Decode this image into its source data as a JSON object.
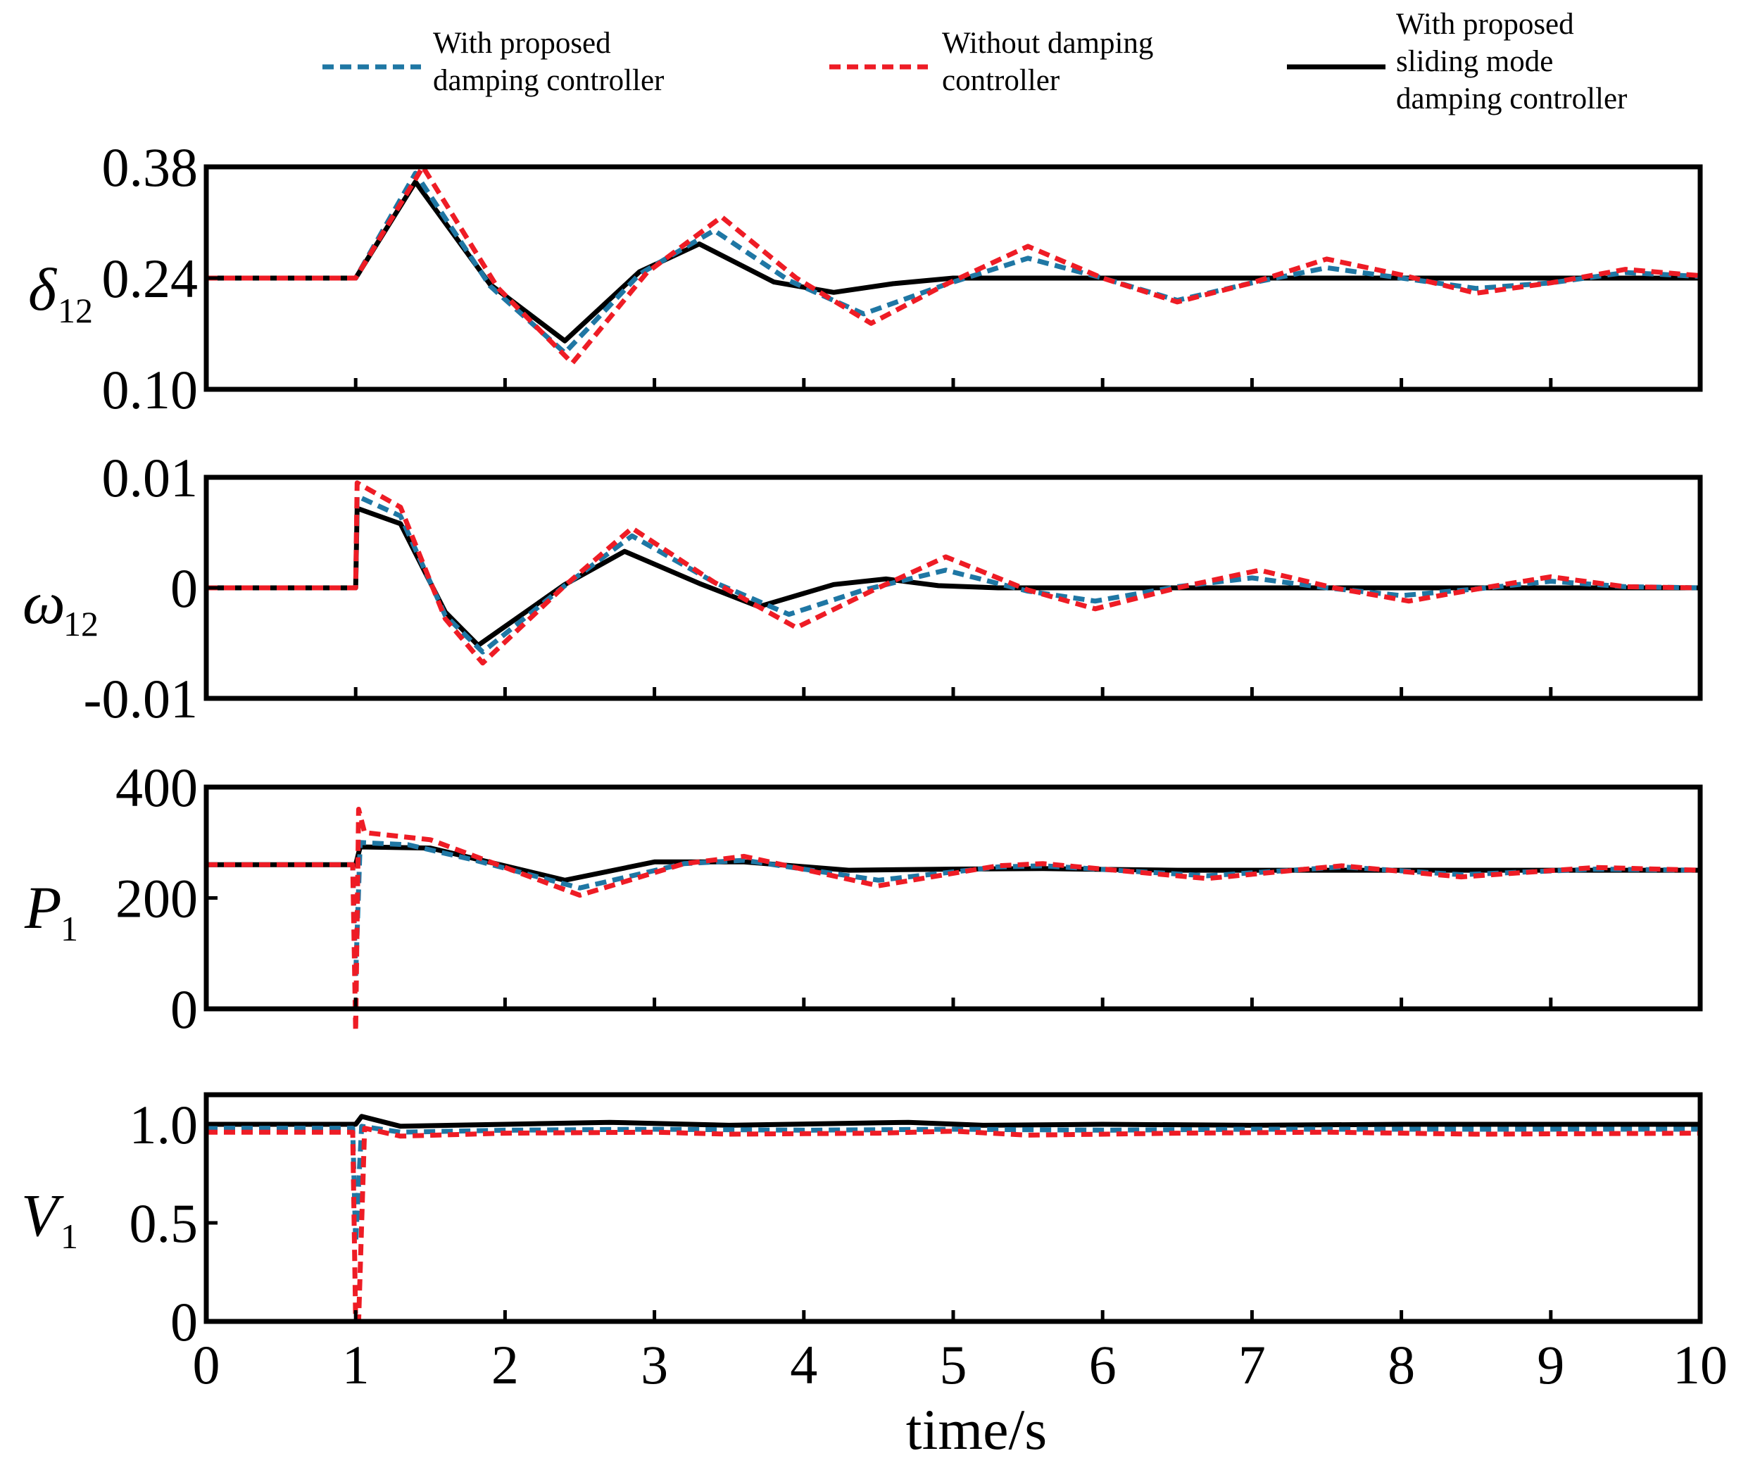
{
  "colors": {
    "blue": "#1f77a4",
    "red": "#ee1c25",
    "black": "#000000"
  },
  "legend": [
    {
      "lines": [
        "With proposed",
        "damping controller"
      ],
      "style": "dash",
      "color": "#1f77a4"
    },
    {
      "lines": [
        "Without damping",
        "controller"
      ],
      "style": "dash",
      "color": "#ee1c25"
    },
    {
      "lines": [
        "With proposed",
        "sliding mode",
        "damping controller"
      ],
      "style": "solid",
      "color": "#000000"
    }
  ],
  "chart_data": [
    {
      "type": "line",
      "id": "delta",
      "ylabel": "δ",
      "ylabel_sub": "12",
      "ylim": [
        0.1,
        0.38
      ],
      "yticks": [
        0.1,
        0.24,
        0.38
      ],
      "yticklabels": [
        "0.10",
        "0.24",
        "0.38"
      ],
      "xlim": [
        0,
        10
      ],
      "series": [
        {
          "name": "With proposed damping controller",
          "points": [
            [
              0,
              0.24
            ],
            [
              1,
              0.24
            ],
            [
              1.4,
              0.372
            ],
            [
              1.9,
              0.23
            ],
            [
              2.4,
              0.146
            ],
            [
              2.9,
              0.245
            ],
            [
              3.4,
              0.3
            ],
            [
              3.9,
              0.237
            ],
            [
              4.4,
              0.195
            ],
            [
              4.95,
              0.232
            ],
            [
              5.5,
              0.265
            ],
            [
              6,
              0.24
            ],
            [
              6.5,
              0.212
            ],
            [
              7,
              0.234
            ],
            [
              7.5,
              0.253
            ],
            [
              8,
              0.24
            ],
            [
              8.5,
              0.227
            ],
            [
              9,
              0.234
            ],
            [
              9.5,
              0.247
            ],
            [
              10,
              0.242
            ]
          ]
        },
        {
          "name": "Without damping controller",
          "points": [
            [
              0,
              0.24
            ],
            [
              1,
              0.24
            ],
            [
              1.45,
              0.38
            ],
            [
              1.95,
              0.228
            ],
            [
              2.45,
              0.133
            ],
            [
              2.95,
              0.247
            ],
            [
              3.45,
              0.317
            ],
            [
              3.95,
              0.24
            ],
            [
              4.45,
              0.183
            ],
            [
              4.95,
              0.232
            ],
            [
              5.5,
              0.28
            ],
            [
              6,
              0.24
            ],
            [
              6.5,
              0.21
            ],
            [
              7,
              0.234
            ],
            [
              7.5,
              0.264
            ],
            [
              8,
              0.244
            ],
            [
              8.5,
              0.221
            ],
            [
              9,
              0.234
            ],
            [
              9.5,
              0.251
            ],
            [
              10,
              0.243
            ]
          ]
        },
        {
          "name": "With proposed sliding mode damping controller",
          "points": [
            [
              0,
              0.24
            ],
            [
              1,
              0.24
            ],
            [
              1.4,
              0.361
            ],
            [
              1.9,
              0.232
            ],
            [
              2.4,
              0.161
            ],
            [
              2.9,
              0.248
            ],
            [
              3.3,
              0.283
            ],
            [
              3.8,
              0.235
            ],
            [
              4.2,
              0.222
            ],
            [
              4.6,
              0.233
            ],
            [
              5.0,
              0.24
            ],
            [
              10,
              0.24
            ]
          ]
        }
      ]
    },
    {
      "type": "line",
      "id": "omega",
      "ylabel": "ω",
      "ylabel_sub": "12",
      "ylim": [
        -0.01,
        0.01
      ],
      "yticks": [
        -0.01,
        0,
        0.01
      ],
      "yticklabels": [
        "-0.01",
        "0",
        "0.01"
      ],
      "xlim": [
        0,
        10
      ],
      "series": [
        {
          "name": "With proposed damping controller",
          "points": [
            [
              0,
              0
            ],
            [
              1,
              0
            ],
            [
              1.01,
              0.0083
            ],
            [
              1.3,
              0.0065
            ],
            [
              1.6,
              -0.0025
            ],
            [
              1.85,
              -0.0058
            ],
            [
              2.4,
              0.0002
            ],
            [
              2.85,
              0.0047
            ],
            [
              3.4,
              0.0005
            ],
            [
              3.9,
              -0.0024
            ],
            [
              4.4,
              -0.0002
            ],
            [
              4.95,
              0.0016
            ],
            [
              5.5,
              -0.0003
            ],
            [
              5.95,
              -0.0012
            ],
            [
              6.5,
              0.0001
            ],
            [
              7.0,
              0.0009
            ],
            [
              7.5,
              0
            ],
            [
              8.0,
              -0.0007
            ],
            [
              8.5,
              -0.0001
            ],
            [
              9.0,
              0.0006
            ],
            [
              9.5,
              0.0001
            ],
            [
              10,
              0
            ]
          ]
        },
        {
          "name": "Without damping controller",
          "points": [
            [
              0,
              0
            ],
            [
              1,
              0
            ],
            [
              1.01,
              0.0095
            ],
            [
              1.3,
              0.0073
            ],
            [
              1.6,
              -0.0028
            ],
            [
              1.85,
              -0.0068
            ],
            [
              2.4,
              0.0002
            ],
            [
              2.85,
              0.0054
            ],
            [
              3.4,
              0.0005
            ],
            [
              3.95,
              -0.0036
            ],
            [
              4.45,
              -0.0003
            ],
            [
              4.95,
              0.0028
            ],
            [
              5.5,
              -0.0002
            ],
            [
              5.95,
              -0.0019
            ],
            [
              6.5,
              0
            ],
            [
              7.05,
              0.0016
            ],
            [
              7.55,
              0
            ],
            [
              8.05,
              -0.0012
            ],
            [
              8.55,
              0
            ],
            [
              9.0,
              0.001
            ],
            [
              9.5,
              0.0001
            ],
            [
              10,
              0
            ]
          ]
        },
        {
          "name": "With proposed sliding mode damping controller",
          "points": [
            [
              0,
              0
            ],
            [
              1,
              0
            ],
            [
              1.01,
              0.0072
            ],
            [
              1.3,
              0.0058
            ],
            [
              1.6,
              -0.0022
            ],
            [
              1.82,
              -0.0052
            ],
            [
              2.4,
              0.0003
            ],
            [
              2.8,
              0.0033
            ],
            [
              3.3,
              0.0004
            ],
            [
              3.7,
              -0.0017
            ],
            [
              4.2,
              0.0003
            ],
            [
              4.55,
              0.0008
            ],
            [
              4.9,
              0.0002
            ],
            [
              5.3,
              0
            ],
            [
              10,
              0
            ]
          ]
        }
      ]
    },
    {
      "type": "line",
      "id": "power",
      "ylabel": "P",
      "ylabel_sub": "1",
      "ylim": [
        0,
        400
      ],
      "yticks": [
        0,
        200,
        400
      ],
      "yticklabels": [
        "0",
        "200",
        "400"
      ],
      "xlim": [
        0,
        10
      ],
      "series": [
        {
          "name": "With proposed damping controller",
          "points": [
            [
              0,
              260
            ],
            [
              0.98,
              260
            ],
            [
              1.0,
              58
            ],
            [
              1.03,
              300
            ],
            [
              1.35,
              296
            ],
            [
              1.8,
              268
            ],
            [
              2.5,
              218
            ],
            [
              3.2,
              262
            ],
            [
              3.6,
              268
            ],
            [
              4.5,
              232
            ],
            [
              5.3,
              256
            ],
            [
              5.6,
              258
            ],
            [
              6.7,
              240
            ],
            [
              7.6,
              256
            ],
            [
              8.4,
              242
            ],
            [
              9.3,
              252
            ],
            [
              10,
              250
            ]
          ]
        },
        {
          "name": "Without damping controller",
          "points": [
            [
              0,
              260
            ],
            [
              0.98,
              260
            ],
            [
              1.0,
              -40
            ],
            [
              1.02,
              360
            ],
            [
              1.06,
              318
            ],
            [
              1.5,
              305
            ],
            [
              1.8,
              275
            ],
            [
              2.5,
              205
            ],
            [
              3.2,
              262
            ],
            [
              3.6,
              275
            ],
            [
              4.5,
              222
            ],
            [
              5.3,
              258
            ],
            [
              5.6,
              262
            ],
            [
              6.7,
              235
            ],
            [
              7.6,
              258
            ],
            [
              8.4,
              238
            ],
            [
              9.3,
              255
            ],
            [
              10,
              250
            ]
          ]
        },
        {
          "name": "With proposed sliding mode damping controller",
          "points": [
            [
              0,
              260
            ],
            [
              0.98,
              260
            ],
            [
              1.0,
              260
            ],
            [
              1.03,
              292
            ],
            [
              1.5,
              290
            ],
            [
              2.4,
              232
            ],
            [
              3.0,
              265
            ],
            [
              3.6,
              265
            ],
            [
              4.3,
              250
            ],
            [
              5.0,
              252
            ],
            [
              5.6,
              253
            ],
            [
              6.5,
              250
            ],
            [
              10,
              250
            ]
          ]
        }
      ]
    },
    {
      "type": "line",
      "id": "voltage",
      "ylabel": "V",
      "ylabel_sub": "1",
      "ylim": [
        0,
        1.15
      ],
      "yticks": [
        0,
        0.5,
        1.0
      ],
      "yticklabels": [
        "0",
        "0.5",
        "1.0"
      ],
      "xlim": [
        0,
        10
      ],
      "xticks": [
        0,
        1,
        2,
        3,
        4,
        5,
        6,
        7,
        8,
        9,
        10
      ],
      "xticklabels": [
        "0",
        "1",
        "2",
        "3",
        "4",
        "5",
        "6",
        "7",
        "8",
        "9",
        "10"
      ],
      "xlabel": "time/s",
      "series": [
        {
          "name": "With proposed damping controller",
          "points": [
            [
              0,
              0.98
            ],
            [
              0.98,
              0.98
            ],
            [
              1.0,
              0.4
            ],
            [
              1.04,
              0.99
            ],
            [
              1.3,
              0.96
            ],
            [
              2,
              0.97
            ],
            [
              3,
              0.975
            ],
            [
              4,
              0.97
            ],
            [
              5,
              0.975
            ],
            [
              6,
              0.97
            ],
            [
              7,
              0.975
            ],
            [
              8,
              0.975
            ],
            [
              9,
              0.975
            ],
            [
              10,
              0.975
            ]
          ]
        },
        {
          "name": "Without damping controller",
          "points": [
            [
              0,
              0.96
            ],
            [
              0.98,
              0.96
            ],
            [
              1.0,
              0.0
            ],
            [
              1.02,
              0.0
            ],
            [
              1.06,
              0.98
            ],
            [
              1.3,
              0.94
            ],
            [
              2,
              0.955
            ],
            [
              3,
              0.96
            ],
            [
              3.5,
              0.95
            ],
            [
              4.5,
              0.955
            ],
            [
              5,
              0.965
            ],
            [
              5.5,
              0.945
            ],
            [
              6.5,
              0.955
            ],
            [
              7.5,
              0.96
            ],
            [
              8.5,
              0.95
            ],
            [
              10,
              0.955
            ]
          ]
        },
        {
          "name": "With proposed sliding mode damping controller",
          "points": [
            [
              0,
              1.0
            ],
            [
              0.98,
              1.0
            ],
            [
              1.0,
              1.0
            ],
            [
              1.04,
              1.04
            ],
            [
              1.3,
              0.99
            ],
            [
              2,
              1.0
            ],
            [
              2.7,
              1.01
            ],
            [
              3.5,
              0.995
            ],
            [
              4.7,
              1.01
            ],
            [
              5.2,
              0.995
            ],
            [
              6,
              1.0
            ],
            [
              7,
              0.995
            ],
            [
              8,
              1.0
            ],
            [
              9,
              1.0
            ],
            [
              10,
              1.0
            ]
          ]
        }
      ]
    }
  ]
}
